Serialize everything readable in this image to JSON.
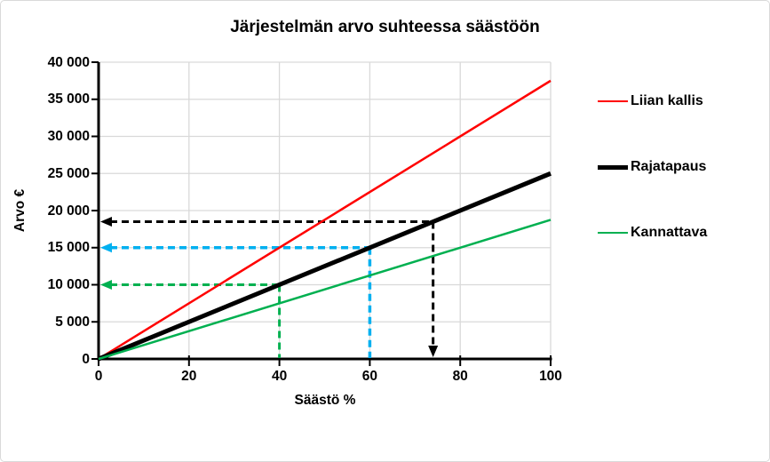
{
  "chart_data": {
    "type": "line",
    "title": "Järjestelmän arvo suhteessa säästöön",
    "xlabel": "Säästö %",
    "ylabel": "Arvo €",
    "xlim": [
      0,
      100
    ],
    "ylim": [
      0,
      40000
    ],
    "xticks": [
      0,
      20,
      40,
      60,
      80,
      100
    ],
    "xtick_labels": [
      "0",
      "20",
      "40",
      "60",
      "80",
      "100"
    ],
    "yticks": [
      0,
      5000,
      10000,
      15000,
      20000,
      25000,
      30000,
      35000,
      40000
    ],
    "ytick_labels": [
      "0",
      "5 000",
      "10 000",
      "15 000",
      "20 000",
      "25 000",
      "30 000",
      "35 000",
      "40 000"
    ],
    "grid": true,
    "legend_position": "right",
    "colors": {
      "grid": "#D9D9D9",
      "axis": "#000000",
      "frame_border": "#D9D9D9",
      "background": "#FFFFFF"
    },
    "series": [
      {
        "name": "Liian kallis",
        "color": "#FF0000",
        "line_width": 2.5,
        "x": [
          0,
          100
        ],
        "y": [
          0,
          37500
        ]
      },
      {
        "name": "Rajatapaus",
        "color": "#000000",
        "line_width": 5,
        "x": [
          0,
          100
        ],
        "y": [
          0,
          25000
        ]
      },
      {
        "name": "Kannattava",
        "color": "#00B050",
        "line_width": 2.5,
        "x": [
          0,
          100
        ],
        "y": [
          0,
          18750
        ]
      }
    ],
    "annotations": [
      {
        "name": "guide-black",
        "color": "#000000",
        "x": 74,
        "y": 18500,
        "line_width": 3,
        "arrows": [
          "left",
          "down"
        ]
      },
      {
        "name": "guide-blue",
        "color": "#00B0F0",
        "x": 60,
        "y": 15000,
        "line_width": 3.5,
        "arrows": [
          "left"
        ]
      },
      {
        "name": "guide-green",
        "color": "#00B050",
        "x": 40,
        "y": 10000,
        "line_width": 3,
        "arrows": [
          "left"
        ]
      }
    ]
  }
}
